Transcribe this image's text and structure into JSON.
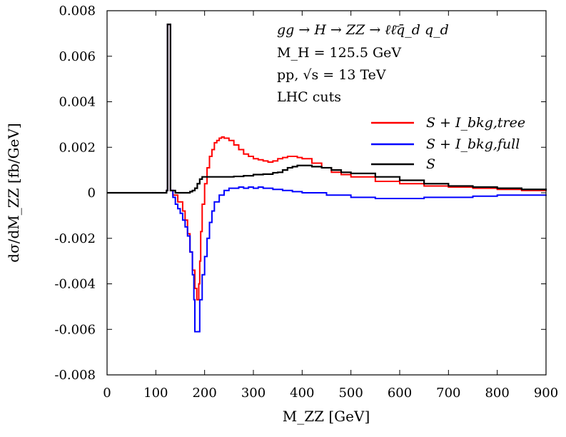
{
  "chart_data": {
    "type": "line",
    "xlabel": "M_ZZ [GeV]",
    "ylabel": "dσ/dM_ZZ [fb/GeV]",
    "xlim": [
      0,
      900
    ],
    "ylim": [
      -0.008,
      0.008
    ],
    "x_ticks": [
      "0",
      "100",
      "200",
      "300",
      "400",
      "500",
      "600",
      "700",
      "800",
      "900"
    ],
    "y_ticks": [
      "0.008",
      "0.006",
      "0.004",
      "0.002",
      "0",
      "-0.002",
      "-0.004",
      "-0.006",
      "-0.008"
    ],
    "annotations": [
      "gg → H → ZZ → ℓℓ̄q̄_d q_d",
      "M_H = 125.5 GeV",
      "pp, √s = 13 TeV",
      "LHC cuts"
    ],
    "legend_position": "top-right",
    "grid": false,
    "series": [
      {
        "name": "S + I_bkg,tree",
        "color": "#ff0000",
        "points": [
          [
            0,
            0
          ],
          [
            120,
            0
          ],
          [
            122,
            0.0001
          ],
          [
            124,
            0.0074
          ],
          [
            128,
            0.0074
          ],
          [
            130,
            0.0001
          ],
          [
            135,
            -0.0001
          ],
          [
            145,
            -0.0004
          ],
          [
            155,
            -0.0008
          ],
          [
            160,
            -0.0012
          ],
          [
            165,
            -0.0018
          ],
          [
            170,
            -0.0026
          ],
          [
            175,
            -0.0034
          ],
          [
            180,
            -0.0042
          ],
          [
            184,
            -0.0047
          ],
          [
            188,
            -0.004
          ],
          [
            190,
            -0.003
          ],
          [
            192,
            -0.0017
          ],
          [
            195,
            -0.0005
          ],
          [
            200,
            0.0004
          ],
          [
            205,
            0.0011
          ],
          [
            210,
            0.0016
          ],
          [
            215,
            0.0019
          ],
          [
            220,
            0.0022
          ],
          [
            225,
            0.0023
          ],
          [
            230,
            0.0024
          ],
          [
            235,
            0.00245
          ],
          [
            240,
            0.0024
          ],
          [
            245,
            0.0024
          ],
          [
            250,
            0.0023
          ],
          [
            260,
            0.0021
          ],
          [
            270,
            0.0019
          ],
          [
            280,
            0.0017
          ],
          [
            290,
            0.0016
          ],
          [
            300,
            0.0015
          ],
          [
            310,
            0.00145
          ],
          [
            320,
            0.0014
          ],
          [
            330,
            0.00135
          ],
          [
            340,
            0.0014
          ],
          [
            350,
            0.0015
          ],
          [
            360,
            0.00155
          ],
          [
            370,
            0.0016
          ],
          [
            380,
            0.0016
          ],
          [
            390,
            0.00155
          ],
          [
            400,
            0.0015
          ],
          [
            420,
            0.0013
          ],
          [
            440,
            0.0011
          ],
          [
            460,
            0.0009
          ],
          [
            480,
            0.0008
          ],
          [
            500,
            0.0007
          ],
          [
            550,
            0.0005
          ],
          [
            600,
            0.0004
          ],
          [
            650,
            0.0003
          ],
          [
            700,
            0.00025
          ],
          [
            750,
            0.0002
          ],
          [
            800,
            0.00015
          ],
          [
            850,
            0.0001
          ],
          [
            900,
            8e-05
          ]
        ]
      },
      {
        "name": "S + I_bkg,full",
        "color": "#0000ff",
        "points": [
          [
            0,
            0
          ],
          [
            120,
            0
          ],
          [
            122,
            0.0001
          ],
          [
            124,
            0.0074
          ],
          [
            128,
            0.0074
          ],
          [
            130,
            0.0001
          ],
          [
            135,
            -0.0002
          ],
          [
            140,
            -0.0005
          ],
          [
            145,
            -0.0007
          ],
          [
            150,
            -0.0009
          ],
          [
            155,
            -0.0012
          ],
          [
            160,
            -0.0015
          ],
          [
            165,
            -0.0019
          ],
          [
            170,
            -0.0026
          ],
          [
            175,
            -0.0036
          ],
          [
            178,
            -0.0047
          ],
          [
            180,
            -0.0061
          ],
          [
            188,
            -0.0061
          ],
          [
            190,
            -0.0047
          ],
          [
            195,
            -0.0036
          ],
          [
            200,
            -0.0028
          ],
          [
            205,
            -0.002
          ],
          [
            210,
            -0.0013
          ],
          [
            215,
            -0.0008
          ],
          [
            220,
            -0.0004
          ],
          [
            230,
            -0.0001
          ],
          [
            240,
            0.0001
          ],
          [
            250,
            0.0002
          ],
          [
            260,
            0.0002
          ],
          [
            270,
            0.00025
          ],
          [
            280,
            0.0002
          ],
          [
            290,
            0.00025
          ],
          [
            300,
            0.0002
          ],
          [
            310,
            0.00025
          ],
          [
            320,
            0.0002
          ],
          [
            340,
            0.00015
          ],
          [
            360,
            0.0001
          ],
          [
            380,
            5e-05
          ],
          [
            400,
            0
          ],
          [
            450,
            -0.0001
          ],
          [
            500,
            -0.0002
          ],
          [
            550,
            -0.00025
          ],
          [
            600,
            -0.00025
          ],
          [
            650,
            -0.0002
          ],
          [
            700,
            -0.0002
          ],
          [
            750,
            -0.00015
          ],
          [
            800,
            -0.0001
          ],
          [
            850,
            -0.0001
          ],
          [
            900,
            -8e-05
          ]
        ]
      },
      {
        "name": "S",
        "color": "#000000",
        "points": [
          [
            0,
            0
          ],
          [
            120,
            0
          ],
          [
            122,
            0.0001
          ],
          [
            124,
            0.0074
          ],
          [
            128,
            0.0074
          ],
          [
            130,
            0.0001
          ],
          [
            140,
            0
          ],
          [
            150,
            0
          ],
          [
            160,
            0
          ],
          [
            170,
            5e-05
          ],
          [
            175,
            0.0001
          ],
          [
            180,
            0.0002
          ],
          [
            185,
            0.0004
          ],
          [
            190,
            0.0006
          ],
          [
            195,
            0.0007
          ],
          [
            200,
            0.0007
          ],
          [
            220,
            0.0007
          ],
          [
            240,
            0.0007
          ],
          [
            260,
            0.00072
          ],
          [
            280,
            0.00075
          ],
          [
            300,
            0.0008
          ],
          [
            320,
            0.00082
          ],
          [
            340,
            0.00088
          ],
          [
            350,
            0.0009
          ],
          [
            360,
            0.001
          ],
          [
            370,
            0.0011
          ],
          [
            380,
            0.00115
          ],
          [
            390,
            0.0012
          ],
          [
            400,
            0.0012
          ],
          [
            420,
            0.00115
          ],
          [
            440,
            0.0011
          ],
          [
            460,
            0.001
          ],
          [
            480,
            0.0009
          ],
          [
            500,
            0.00085
          ],
          [
            550,
            0.0007
          ],
          [
            600,
            0.00055
          ],
          [
            650,
            0.0004
          ],
          [
            700,
            0.0003
          ],
          [
            750,
            0.00025
          ],
          [
            800,
            0.0002
          ],
          [
            850,
            0.00015
          ],
          [
            900,
            0.0001
          ]
        ]
      }
    ]
  }
}
